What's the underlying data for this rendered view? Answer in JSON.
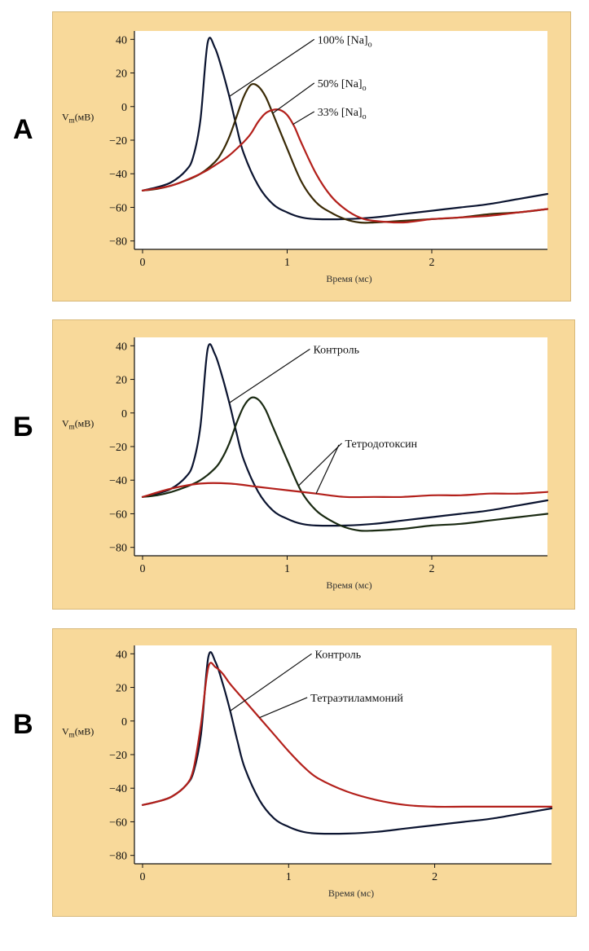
{
  "colors": {
    "panel": "#f8d99a",
    "plot": "#ffffff",
    "black": "#0b1430",
    "brown": "#3a2a06",
    "red": "#b3201b",
    "green": "#1a2a12"
  },
  "chart_data": [
    {
      "panel": "А",
      "type": "line",
      "ylabel_main": "V",
      "ylabel_sub": "m",
      "ylabel_unit": "(мВ)",
      "xlabel": "Время (мс)",
      "xlim": [
        0,
        2.8
      ],
      "ylim": [
        -85,
        45
      ],
      "xticks": [
        0,
        1,
        2
      ],
      "yticks": [
        40,
        20,
        0,
        -20,
        -40,
        -60,
        -80
      ],
      "series": [
        {
          "name": "100% [Na]o",
          "color": "black",
          "x": [
            0,
            0.1,
            0.2,
            0.3,
            0.35,
            0.4,
            0.45,
            0.5,
            0.55,
            0.6,
            0.65,
            0.7,
            0.8,
            0.9,
            1.0,
            1.1,
            1.2,
            1.4,
            1.6,
            1.8,
            2.0,
            2.2,
            2.4,
            2.6,
            2.8
          ],
          "y": [
            -50,
            -48,
            -45,
            -38,
            -30,
            -8,
            38,
            35,
            22,
            6,
            -12,
            -28,
            -47,
            -58,
            -63,
            -66,
            -67,
            -67,
            -66,
            -64,
            -62,
            -60,
            -58,
            -55,
            -52
          ]
        },
        {
          "name": "50% [Na]o",
          "color": "brown",
          "x": [
            0,
            0.1,
            0.2,
            0.3,
            0.4,
            0.5,
            0.55,
            0.6,
            0.65,
            0.7,
            0.75,
            0.8,
            0.85,
            0.9,
            1.0,
            1.1,
            1.2,
            1.3,
            1.4,
            1.5,
            1.6,
            1.8,
            2.0,
            2.2,
            2.4,
            2.6,
            2.8
          ],
          "y": [
            -50,
            -49,
            -47,
            -44,
            -40,
            -33,
            -27,
            -18,
            -6,
            6,
            13,
            12,
            6,
            -4,
            -25,
            -45,
            -57,
            -63,
            -67,
            -69,
            -69,
            -68,
            -67,
            -66,
            -64,
            -63,
            -61
          ]
        },
        {
          "name": "33% [Na]o",
          "color": "red",
          "x": [
            0,
            0.2,
            0.4,
            0.5,
            0.6,
            0.7,
            0.75,
            0.8,
            0.85,
            0.9,
            0.95,
            1.0,
            1.05,
            1.1,
            1.2,
            1.3,
            1.4,
            1.5,
            1.6,
            1.8,
            2.0,
            2.2,
            2.4,
            2.6,
            2.8
          ],
          "y": [
            -50,
            -47,
            -40,
            -35,
            -29,
            -21,
            -16,
            -9,
            -4,
            -2,
            -2,
            -5,
            -12,
            -22,
            -40,
            -53,
            -61,
            -66,
            -68,
            -69,
            -67,
            -66,
            -65,
            -63,
            -61
          ]
        }
      ],
      "annotations": [
        {
          "text": "100% [Na]",
          "sub": "o",
          "series": 0,
          "at_x": 0.6,
          "label_x": 1.21,
          "label_y": 40
        },
        {
          "text": "50% [Na]",
          "sub": "o",
          "series": 1,
          "at_x": 0.9,
          "label_x": 1.21,
          "label_y": 14
        },
        {
          "text": "33% [Na]",
          "sub": "o",
          "series": 2,
          "at_x": 1.04,
          "label_x": 1.21,
          "label_y": -3
        }
      ]
    },
    {
      "panel": "Б",
      "type": "line",
      "ylabel_main": "V",
      "ylabel_sub": "m",
      "ylabel_unit": "(мВ)",
      "xlabel": "Время (мс)",
      "xlim": [
        0,
        2.8
      ],
      "ylim": [
        -85,
        45
      ],
      "xticks": [
        0,
        1,
        2
      ],
      "yticks": [
        40,
        20,
        0,
        -20,
        -40,
        -60,
        -80
      ],
      "series": [
        {
          "name": "Контроль",
          "color": "black",
          "x": [
            0,
            0.1,
            0.2,
            0.3,
            0.35,
            0.4,
            0.45,
            0.5,
            0.55,
            0.6,
            0.65,
            0.7,
            0.8,
            0.9,
            1.0,
            1.1,
            1.2,
            1.4,
            1.6,
            1.8,
            2.0,
            2.2,
            2.4,
            2.6,
            2.8
          ],
          "y": [
            -50,
            -48,
            -45,
            -38,
            -30,
            -8,
            38,
            35,
            22,
            6,
            -12,
            -28,
            -47,
            -58,
            -63,
            -66,
            -67,
            -67,
            -66,
            -64,
            -62,
            -60,
            -58,
            -55,
            -52
          ]
        },
        {
          "name": "",
          "color": "green",
          "x": [
            0,
            0.1,
            0.2,
            0.3,
            0.4,
            0.5,
            0.55,
            0.6,
            0.65,
            0.7,
            0.75,
            0.8,
            0.85,
            0.9,
            1.0,
            1.1,
            1.2,
            1.3,
            1.4,
            1.5,
            1.6,
            1.8,
            2.0,
            2.2,
            2.4,
            2.6,
            2.8
          ],
          "y": [
            -50,
            -49,
            -47,
            -44,
            -40,
            -33,
            -27,
            -18,
            -6,
            4,
            9,
            8,
            2,
            -8,
            -28,
            -47,
            -58,
            -64,
            -68,
            -70,
            -70,
            -69,
            -67,
            -66,
            -64,
            -62,
            -60
          ]
        },
        {
          "name": "Тетродотоксин",
          "color": "red",
          "x": [
            0,
            0.2,
            0.4,
            0.6,
            0.8,
            1.0,
            1.2,
            1.4,
            1.6,
            1.8,
            2.0,
            2.2,
            2.4,
            2.6,
            2.8
          ],
          "y": [
            -50,
            -45,
            -42,
            -42,
            -44,
            -46,
            -48,
            -50,
            -50,
            -50,
            -49,
            -49,
            -48,
            -48,
            -47
          ]
        }
      ],
      "annotations": [
        {
          "text": "Контроль",
          "sub": "",
          "series": 0,
          "at_x": 0.6,
          "label_x": 1.18,
          "label_y": 38
        },
        {
          "text": "Тетродотоксин",
          "sub": "",
          "series": 1,
          "at_x": 1.08,
          "label_x": 1.4,
          "label_y": -18
        },
        {
          "text": "",
          "sub": "",
          "series": 2,
          "at_x": 1.2,
          "label_x": 1.38,
          "label_y": -19,
          "line_only": true
        }
      ]
    },
    {
      "panel": "В",
      "type": "line",
      "ylabel_main": "V",
      "ylabel_sub": "m",
      "ylabel_unit": "(мВ)",
      "xlabel": "Время (мс)",
      "xlim": [
        0,
        2.8
      ],
      "ylim": [
        -85,
        45
      ],
      "xticks": [
        0,
        1,
        2
      ],
      "yticks": [
        40,
        20,
        0,
        -20,
        -40,
        -60,
        -80
      ],
      "series": [
        {
          "name": "Контроль",
          "color": "black",
          "x": [
            0,
            0.1,
            0.2,
            0.3,
            0.35,
            0.4,
            0.45,
            0.5,
            0.55,
            0.6,
            0.65,
            0.7,
            0.8,
            0.9,
            1.0,
            1.1,
            1.2,
            1.4,
            1.6,
            1.8,
            2.0,
            2.2,
            2.4,
            2.6,
            2.8
          ],
          "y": [
            -50,
            -48,
            -45,
            -38,
            -30,
            -8,
            38,
            35,
            22,
            6,
            -12,
            -28,
            -47,
            -58,
            -63,
            -66,
            -67,
            -67,
            -66,
            -64,
            -62,
            -60,
            -58,
            -55,
            -52
          ]
        },
        {
          "name": "Тетраэтиламмоний",
          "color": "red",
          "x": [
            0,
            0.1,
            0.2,
            0.3,
            0.35,
            0.4,
            0.45,
            0.5,
            0.55,
            0.6,
            0.7,
            0.8,
            0.9,
            1.0,
            1.1,
            1.2,
            1.4,
            1.6,
            1.8,
            2.0,
            2.2,
            2.4,
            2.6,
            2.8
          ],
          "y": [
            -50,
            -48,
            -45,
            -38,
            -28,
            -2,
            32,
            32,
            28,
            22,
            12,
            2,
            -8,
            -18,
            -27,
            -34,
            -42,
            -47,
            -50,
            -51,
            -51,
            -51,
            -51,
            -51
          ]
        }
      ],
      "annotations": [
        {
          "text": "Контроль",
          "sub": "",
          "series": 0,
          "at_x": 0.6,
          "label_x": 1.18,
          "label_y": 40
        },
        {
          "text": "Тетраэтиламмоний",
          "sub": "",
          "series": 1,
          "at_x": 0.8,
          "label_x": 1.15,
          "label_y": 14
        }
      ]
    }
  ]
}
